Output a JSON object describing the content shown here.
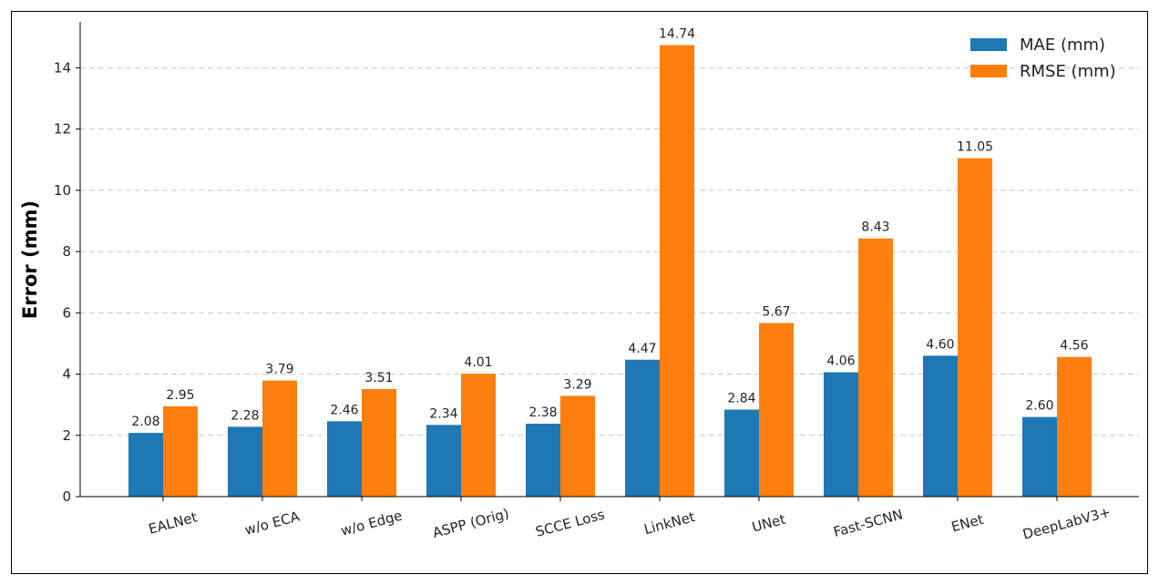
{
  "chart_data": {
    "type": "bar",
    "title": "",
    "xlabel": "",
    "ylabel": "Error (mm)",
    "ylim": [
      0,
      15.5
    ],
    "yticks": [
      0,
      2,
      4,
      6,
      8,
      10,
      12,
      14
    ],
    "grid": "y-dashed",
    "legend_position": "top-right",
    "categories": [
      "EALNet",
      "w/o ECA",
      "w/o Edge",
      "ASPP (Orig)",
      "SCCE Loss",
      "LinkNet",
      "UNet",
      "Fast-SCNN",
      "ENet",
      "DeepLabV3+"
    ],
    "series": [
      {
        "name": "MAE (mm)",
        "color": "#1f77b4",
        "values": [
          2.08,
          2.28,
          2.46,
          2.34,
          2.38,
          4.47,
          2.84,
          4.06,
          4.6,
          2.6
        ],
        "labels": [
          "2.08",
          "2.28",
          "2.46",
          "2.34",
          "2.38",
          "4.47",
          "2.84",
          "4.06",
          "4.60",
          "2.60"
        ]
      },
      {
        "name": "RMSE (mm)",
        "color": "#ff7f0e",
        "values": [
          2.95,
          3.79,
          3.51,
          4.01,
          3.29,
          14.74,
          5.67,
          8.43,
          11.05,
          4.56
        ],
        "labels": [
          "2.95",
          "3.79",
          "3.51",
          "4.01",
          "3.29",
          "14.74",
          "5.67",
          "8.43",
          "11.05",
          "4.56"
        ]
      }
    ]
  }
}
